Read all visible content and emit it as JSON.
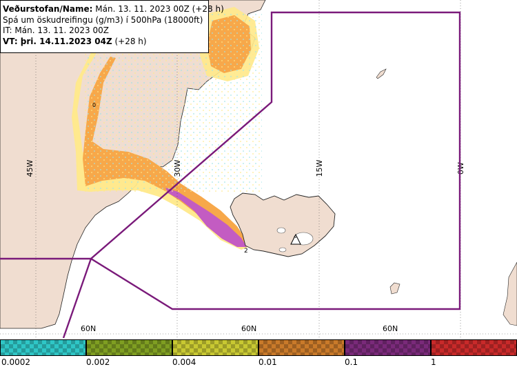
{
  "info": {
    "line1_bold": "Veðurstofan/Name:",
    "line1_rest": " Mán. 13. 11. 2023 00Z (+28 h)",
    "line2": "Spá um öskudreifingu (g/m3) í 500hPa (18000ft)",
    "line3": "IT: Mán. 13. 11. 2023 00Z",
    "line4_bold": "VT: þri. 14.11.2023 04Z",
    "line4_rest": " (+28 h)"
  },
  "grid": {
    "lon_labels": [
      "45W",
      "30W",
      "15W",
      "0W"
    ],
    "lat_labels": [
      "60N",
      "60N",
      "60N"
    ]
  },
  "markers": {
    "a": "0",
    "b": "2"
  },
  "legend": {
    "labels": [
      "0.0002",
      "0.002",
      "0.004",
      "0.01",
      "0.1",
      "1"
    ],
    "colors": [
      "#2fc6c6",
      "#7f9e22",
      "#c8c832",
      "#c97a2a",
      "#7a2a7a",
      "#c82a2a"
    ]
  },
  "colors": {
    "land": "#f0ddd0",
    "ash_low": "#ffe98a",
    "ash_mid": "#f7a84a",
    "ash_high": "#c35cc2",
    "boundary": "#7a1a7a"
  }
}
